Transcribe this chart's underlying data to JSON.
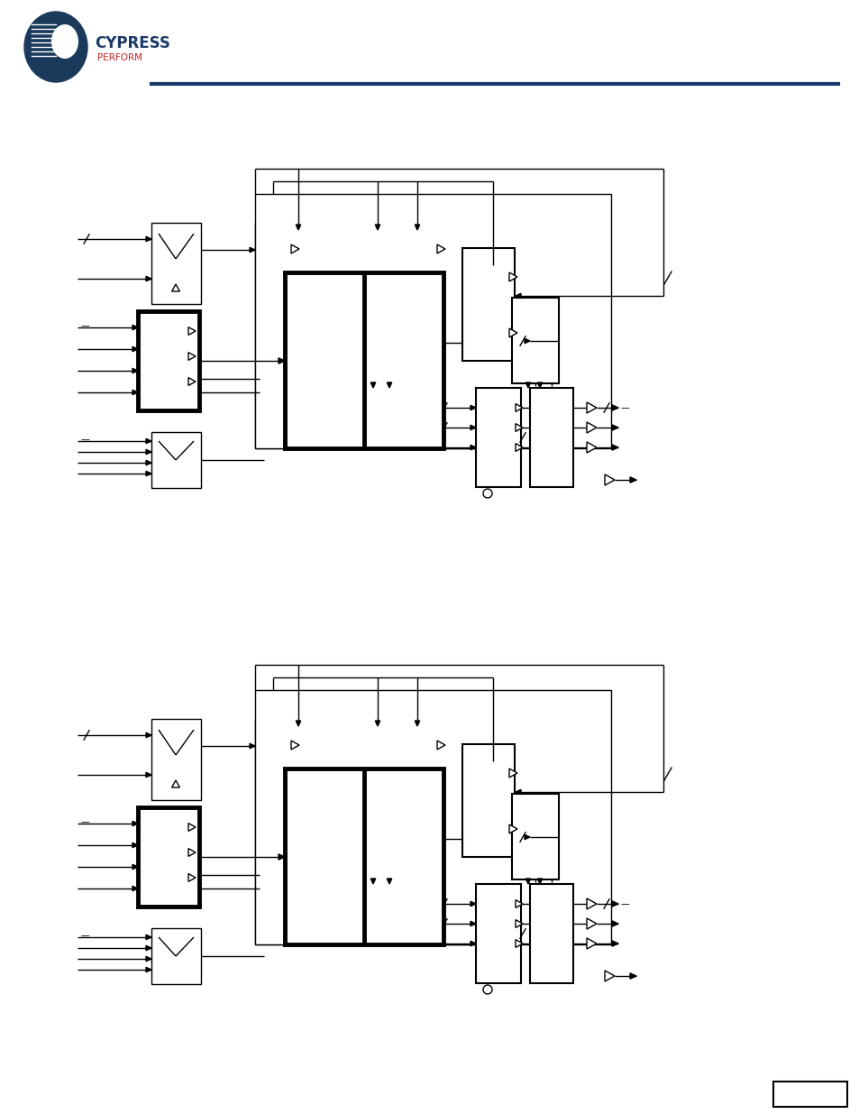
{
  "bg_color": "#ffffff",
  "header_line_color": "#1a3a6b",
  "diagrams": [
    {
      "ox": 65,
      "oy": 660
    },
    {
      "ox": 65,
      "oy": 115
    }
  ],
  "scale": 1.0
}
